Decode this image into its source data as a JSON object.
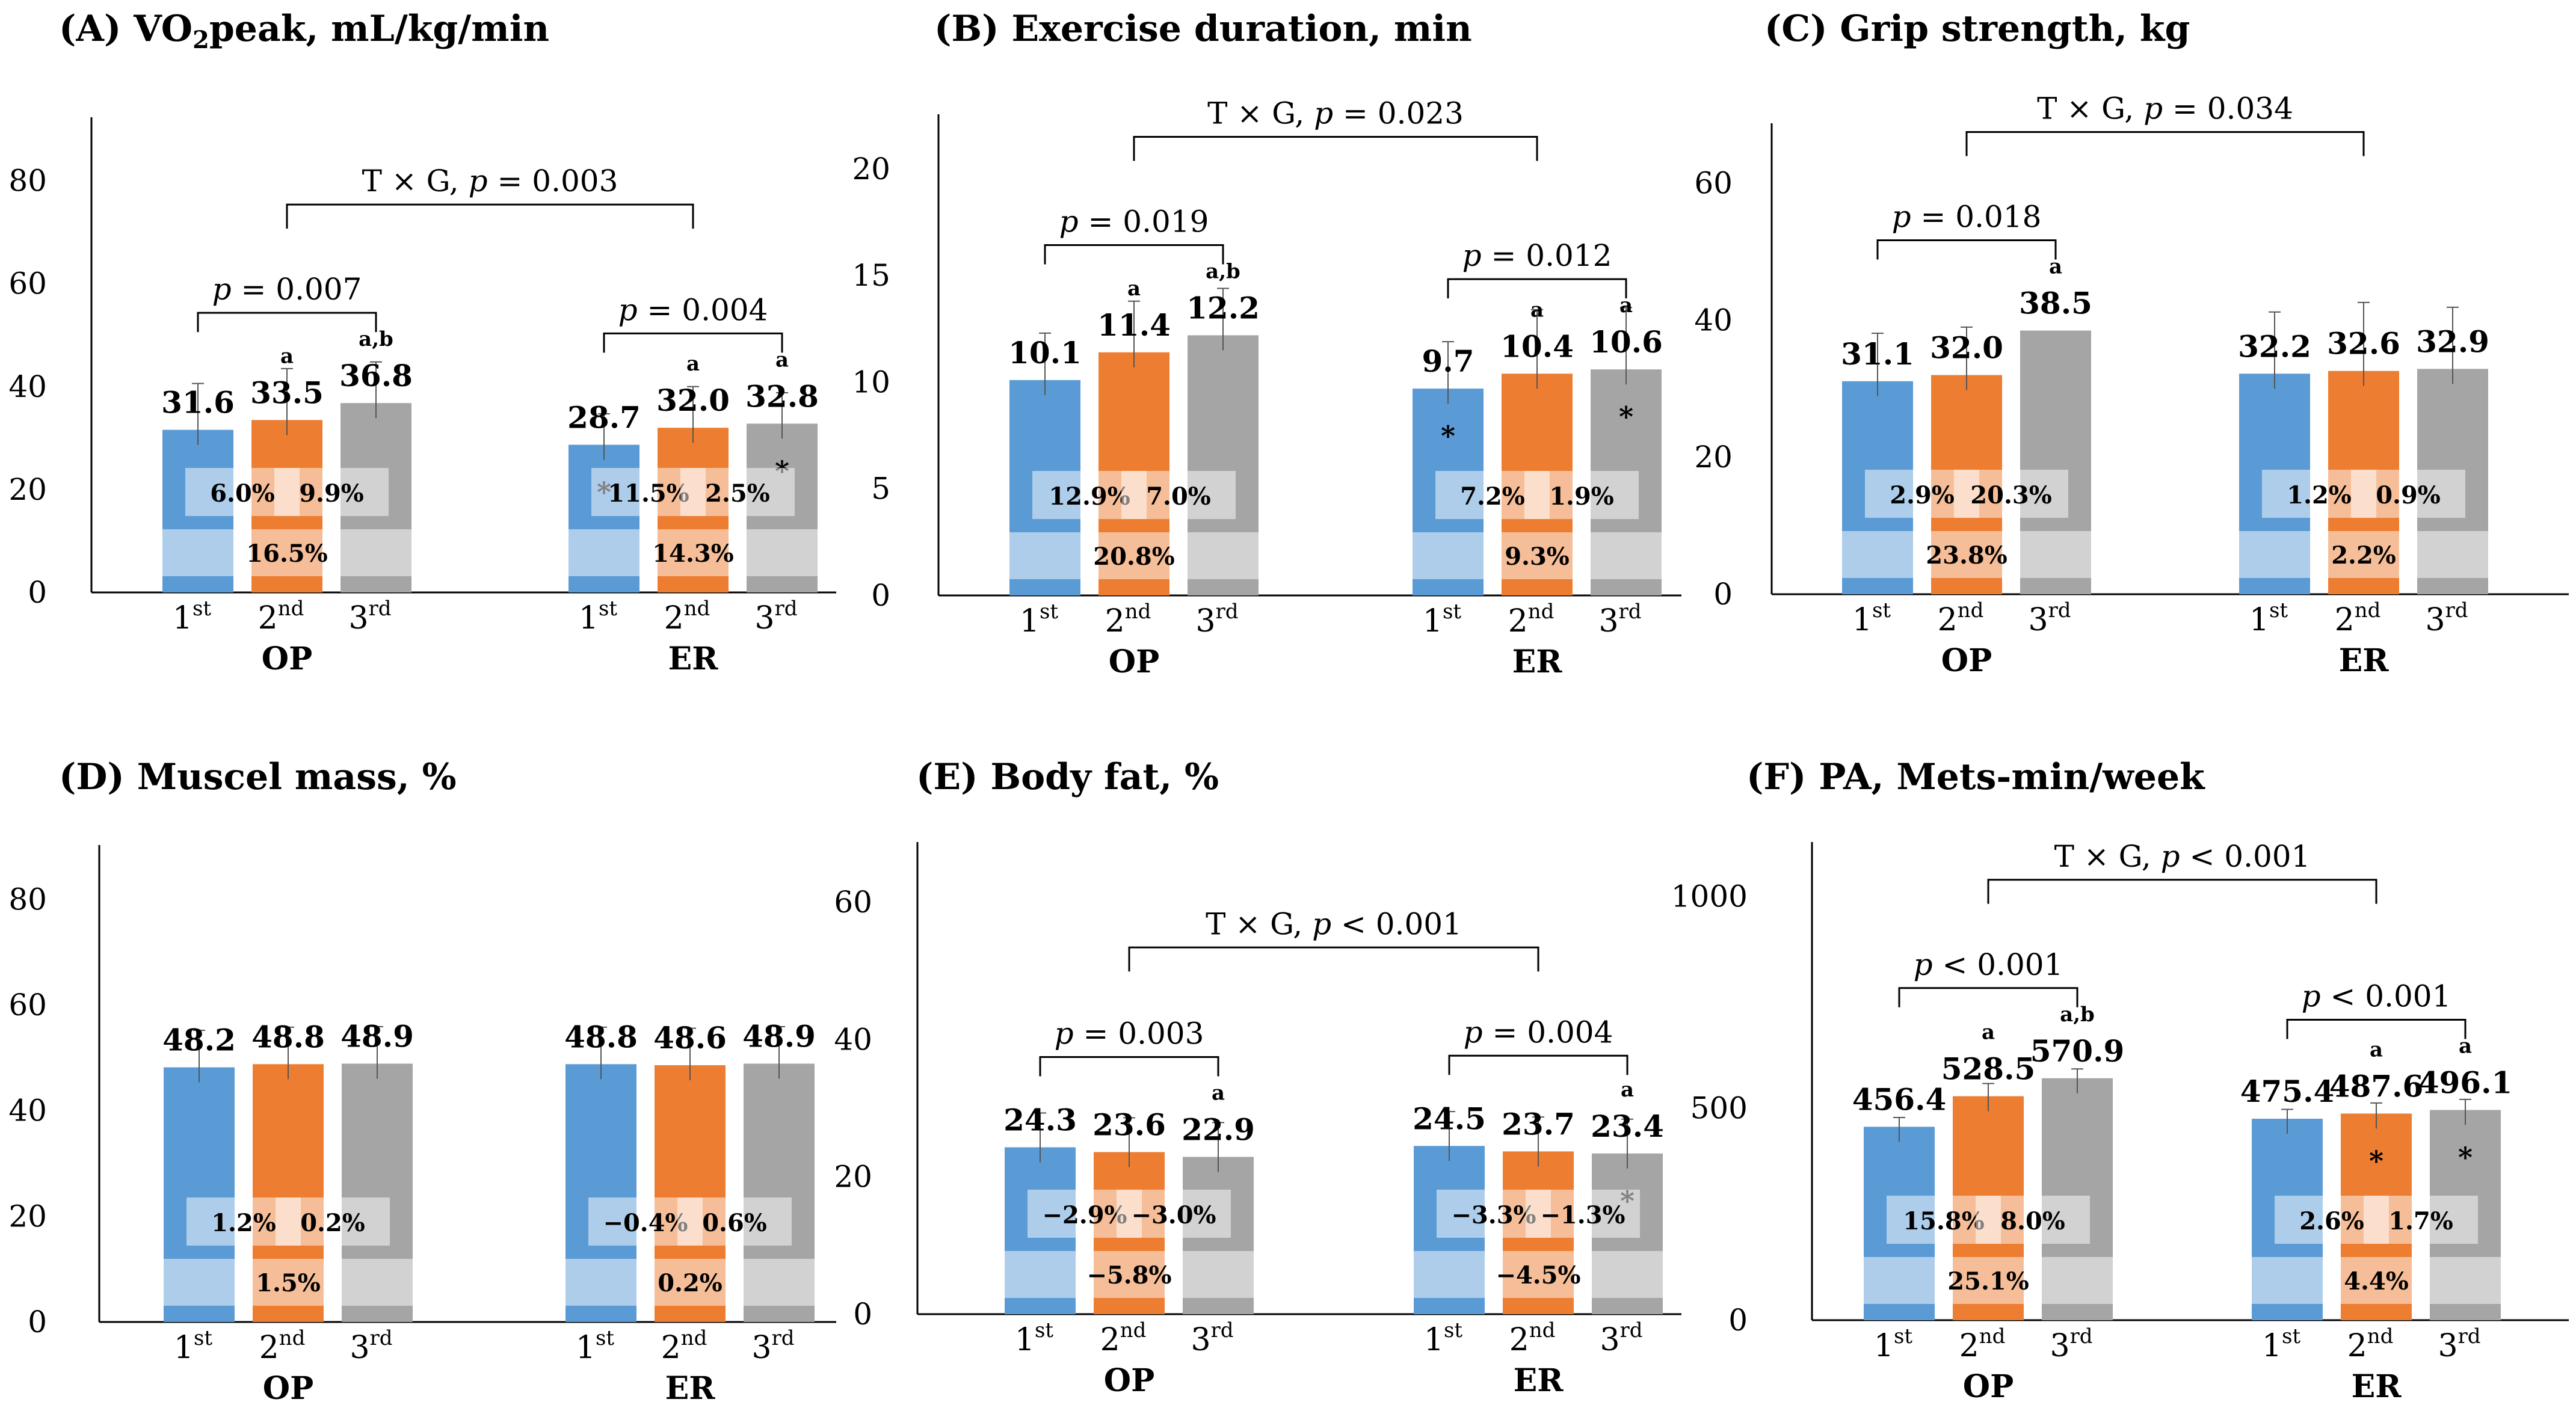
{
  "colors": {
    "first": "#5b9bd5",
    "second": "#ed7d31",
    "third": "#a5a5a5",
    "axis": "#000000"
  },
  "category_labels": [
    {
      "base": "1",
      "sup": "st"
    },
    {
      "base": "2",
      "sup": "nd"
    },
    {
      "base": "3",
      "sup": "rd"
    }
  ],
  "chart_data": [
    {
      "type": "bar",
      "panel": "A",
      "title": "(A) VO",
      "title_sub": "2",
      "title_rest": "peak, mL/kg/min",
      "groups": [
        "OP",
        "ER"
      ],
      "yticks": [
        "0",
        "20",
        "40",
        "60",
        "80"
      ],
      "ylim": [
        0,
        90
      ],
      "series": [
        {
          "name": "1st",
          "values": [
            31.6,
            28.7
          ],
          "labels": [
            "31.6",
            "28.7"
          ],
          "errors": [
            9,
            6
          ]
        },
        {
          "name": "2nd",
          "values": [
            33.5,
            32.0
          ],
          "labels": [
            "33.5",
            "32.0"
          ],
          "errors": [
            10,
            8
          ]
        },
        {
          "name": "3rd",
          "values": [
            36.8,
            32.8
          ],
          "labels": [
            "36.8",
            "32.8"
          ],
          "errors": [
            8,
            6
          ]
        }
      ],
      "letters": [
        [
          "",
          "a",
          "a,b"
        ],
        [
          "",
          "a",
          "a"
        ]
      ],
      "stars": [
        [
          "",
          "",
          ""
        ],
        [
          "*",
          "",
          "*"
        ]
      ],
      "percent_pairs": [
        [
          "6.0%",
          "9.9%"
        ],
        [
          "11.5%",
          "2.5%"
        ]
      ],
      "percent_total": [
        "16.5%",
        "14.3%"
      ],
      "p_within": [
        "0.007",
        "0.004"
      ],
      "interaction": {
        "prefix": "T × G, ",
        "p_label": "p",
        "op": " = ",
        "value": "0.003"
      }
    },
    {
      "type": "bar",
      "panel": "B",
      "title": "(B) Exercise duration, min",
      "groups": [
        "OP",
        "ER"
      ],
      "yticks": [
        "0",
        "5",
        "10",
        "15",
        "20"
      ],
      "ylim": [
        0,
        22
      ],
      "series": [
        {
          "name": "1st",
          "values": [
            10.1,
            9.7
          ],
          "labels": [
            "10.1",
            "9.7"
          ],
          "errors": [
            2.2,
            2.2
          ]
        },
        {
          "name": "2nd",
          "values": [
            11.4,
            10.4
          ],
          "labels": [
            "11.4",
            "10.4"
          ],
          "errors": [
            2.4,
            3.0
          ]
        },
        {
          "name": "3rd",
          "values": [
            12.2,
            10.6
          ],
          "labels": [
            "12.2",
            "10.6"
          ],
          "errors": [
            2.2,
            2.9
          ]
        }
      ],
      "letters": [
        [
          "",
          "a",
          "a,b"
        ],
        [
          "",
          "a",
          "a"
        ]
      ],
      "stars": [
        [
          "",
          "",
          ""
        ],
        [
          "*",
          "",
          "*"
        ]
      ],
      "percent_pairs": [
        [
          "12.9%",
          "7.0%"
        ],
        [
          "7.2%",
          "1.9%"
        ]
      ],
      "percent_total": [
        "20.8%",
        "9.3%"
      ],
      "p_within": [
        "0.019",
        "0.012"
      ],
      "interaction": {
        "prefix": "T × G, ",
        "p_label": "p",
        "op": " = ",
        "value": "0.023"
      }
    },
    {
      "type": "bar",
      "panel": "C",
      "title": "(C) Grip strength, kg",
      "groups": [
        "OP",
        "ER"
      ],
      "yticks": [
        "0",
        "20",
        "40",
        "60"
      ],
      "ylim": [
        0,
        67
      ],
      "series": [
        {
          "name": "1st",
          "values": [
            31.1,
            32.2
          ],
          "labels": [
            "31.1",
            "32.2"
          ],
          "errors": [
            7,
            9
          ]
        },
        {
          "name": "2nd",
          "values": [
            32.0,
            32.6
          ],
          "labels": [
            "32.0",
            "32.6"
          ],
          "errors": [
            7,
            10
          ]
        },
        {
          "name": "3rd",
          "values": [
            38.5,
            32.9
          ],
          "labels": [
            "38.5",
            "32.9"
          ],
          "errors": [
            0,
            9
          ]
        }
      ],
      "letters": [
        [
          "",
          "",
          "a"
        ],
        [
          "",
          "",
          ""
        ]
      ],
      "stars": [
        [
          "",
          "",
          ""
        ],
        [
          "",
          "",
          ""
        ]
      ],
      "percent_pairs": [
        [
          "2.9%",
          "20.3%"
        ],
        [
          "1.2%",
          "0.9%"
        ]
      ],
      "percent_total": [
        "23.8%",
        "2.2%"
      ],
      "p_within": [
        "0.018",
        ""
      ],
      "interaction": {
        "prefix": "T × G, ",
        "p_label": "p",
        "op": " = ",
        "value": "0.034"
      }
    },
    {
      "type": "bar",
      "panel": "D",
      "title": "(D)  Muscel mass, %",
      "groups": [
        "OP",
        "ER"
      ],
      "yticks": [
        "0",
        "20",
        "40",
        "60",
        "80"
      ],
      "ylim": [
        0,
        88
      ],
      "series": [
        {
          "name": "1st",
          "values": [
            48.2,
            48.8
          ],
          "labels": [
            "48.2",
            "48.8"
          ],
          "errors": [
            7,
            7
          ]
        },
        {
          "name": "2nd",
          "values": [
            48.8,
            48.6
          ],
          "labels": [
            "48.8",
            "48.6"
          ],
          "errors": [
            7,
            7
          ]
        },
        {
          "name": "3rd",
          "values": [
            48.9,
            48.9
          ],
          "labels": [
            "48.9",
            "48.9"
          ],
          "errors": [
            7,
            7
          ]
        }
      ],
      "letters": [
        [
          "",
          "",
          ""
        ],
        [
          "",
          "",
          ""
        ]
      ],
      "stars": [
        [
          "",
          "",
          ""
        ],
        [
          "",
          "",
          ""
        ]
      ],
      "percent_pairs": [
        [
          "1.2%",
          "0.2%"
        ],
        [
          "−0.4%",
          "0.6%"
        ]
      ],
      "percent_total": [
        "1.5%",
        "0.2%"
      ],
      "p_within": [
        "",
        ""
      ],
      "interaction": null
    },
    {
      "type": "bar",
      "panel": "E",
      "title": "(E) Body fat, %",
      "groups": [
        "OP",
        "ER"
      ],
      "yticks": [
        "0",
        "20",
        "40",
        "60"
      ],
      "ylim": [
        0,
        67
      ],
      "series": [
        {
          "name": "1st",
          "values": [
            24.3,
            24.5
          ],
          "labels": [
            "24.3",
            "24.5"
          ],
          "errors": [
            5,
            5
          ]
        },
        {
          "name": "2nd",
          "values": [
            23.6,
            23.7
          ],
          "labels": [
            "23.6",
            "23.7"
          ],
          "errors": [
            5,
            5
          ]
        },
        {
          "name": "3rd",
          "values": [
            22.9,
            23.4
          ],
          "labels": [
            "22.9",
            "23.4"
          ],
          "errors": [
            5,
            5
          ]
        }
      ],
      "letters": [
        [
          "",
          "",
          "a"
        ],
        [
          "",
          "",
          "a"
        ]
      ],
      "stars": [
        [
          "",
          "",
          ""
        ],
        [
          "",
          "",
          "*"
        ]
      ],
      "percent_pairs": [
        [
          "−2.9%",
          "−3.0%"
        ],
        [
          "−3.3%",
          "−1.3%"
        ]
      ],
      "percent_total": [
        "−5.8%",
        "−4.5%"
      ],
      "p_within": [
        "0.003",
        "0.004"
      ],
      "interaction": {
        "prefix": "T × G, ",
        "p_label": "p",
        "op": " < ",
        "value": "0.001"
      }
    },
    {
      "type": "bar",
      "panel": "F",
      "title": "(F) PA, Mets-min/week",
      "groups": [
        "OP",
        "ER"
      ],
      "yticks": [
        "0",
        "500",
        "1000"
      ],
      "ylim": [
        0,
        1100
      ],
      "series": [
        {
          "name": "1st",
          "values": [
            456.4,
            475.4
          ],
          "labels": [
            "456.4",
            "475.4"
          ],
          "errors": [
            22,
            22
          ]
        },
        {
          "name": "2nd",
          "values": [
            528.5,
            487.6
          ],
          "labels": [
            "528.5",
            "487.6"
          ],
          "errors": [
            30,
            25
          ]
        },
        {
          "name": "3rd",
          "values": [
            570.9,
            496.1
          ],
          "labels": [
            "570.9",
            "496.1"
          ],
          "errors": [
            22,
            25
          ]
        }
      ],
      "letters": [
        [
          "",
          "a",
          "a,b"
        ],
        [
          "",
          "a",
          "a"
        ]
      ],
      "stars": [
        [
          "",
          "",
          ""
        ],
        [
          "",
          "*",
          "*"
        ]
      ],
      "percent_pairs": [
        [
          "15.8%",
          "8.0%"
        ],
        [
          "2.6%",
          "1.7%"
        ]
      ],
      "percent_total": [
        "25.1%",
        "4.4%"
      ],
      "p_within": [
        "< 0.001",
        "< 0.001"
      ],
      "interaction": {
        "prefix": "T × G, ",
        "p_label": "p",
        "op": " < ",
        "value": "0.001"
      }
    }
  ]
}
